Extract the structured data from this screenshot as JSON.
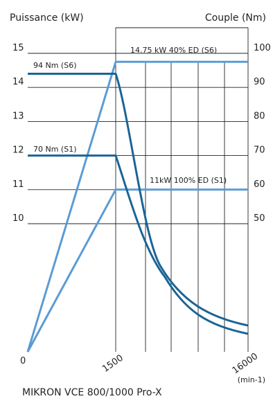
{
  "chart_data": {
    "type": "line",
    "left_axis_title": "Puissance (kW)",
    "right_axis_title": "Couple (Nm)",
    "x_ticks": [
      {
        "label": "0",
        "value": 0
      },
      {
        "label": "1500",
        "value": 1500
      },
      {
        "label": "16000",
        "value": 16000
      }
    ],
    "x_unit": "(min-1)",
    "left_ticks": [
      10,
      11,
      12,
      13,
      14,
      15
    ],
    "right_ticks": [
      50,
      60,
      70,
      80,
      90,
      100
    ],
    "annotations": [
      {
        "text": "14.75 kW 40% ED (S6)"
      },
      {
        "text": "94 Nm (S6)"
      },
      {
        "text": "70 Nm (S1)"
      },
      {
        "text": "11kW 100% ED  (S1)"
      }
    ],
    "series": [
      {
        "kind": "power",
        "color": "#5b9bd5",
        "points": [
          [
            0,
            0
          ],
          [
            1500,
            14.75
          ],
          [
            16000,
            14.75
          ]
        ]
      },
      {
        "kind": "power",
        "color": "#5b9bd5",
        "points": [
          [
            0,
            0
          ],
          [
            1500,
            11
          ],
          [
            16000,
            11
          ]
        ]
      },
      {
        "kind": "torque",
        "color": "#1a6496",
        "points": [
          [
            0,
            94
          ],
          [
            1500,
            94
          ],
          [
            3000,
            25
          ],
          [
            5000,
            14
          ],
          [
            7500,
            10
          ],
          [
            10000,
            8
          ],
          [
            13000,
            6
          ],
          [
            16000,
            4.5
          ]
        ]
      },
      {
        "kind": "torque",
        "color": "#1a6496",
        "points": [
          [
            0,
            70
          ],
          [
            1500,
            70
          ],
          [
            3000,
            20
          ],
          [
            5000,
            11
          ],
          [
            7500,
            8
          ],
          [
            10000,
            6
          ],
          [
            13000,
            4.5
          ],
          [
            16000,
            3
          ]
        ]
      }
    ]
  },
  "footer": {
    "model": "MIKRON VCE 800/1000 Pro-X"
  }
}
